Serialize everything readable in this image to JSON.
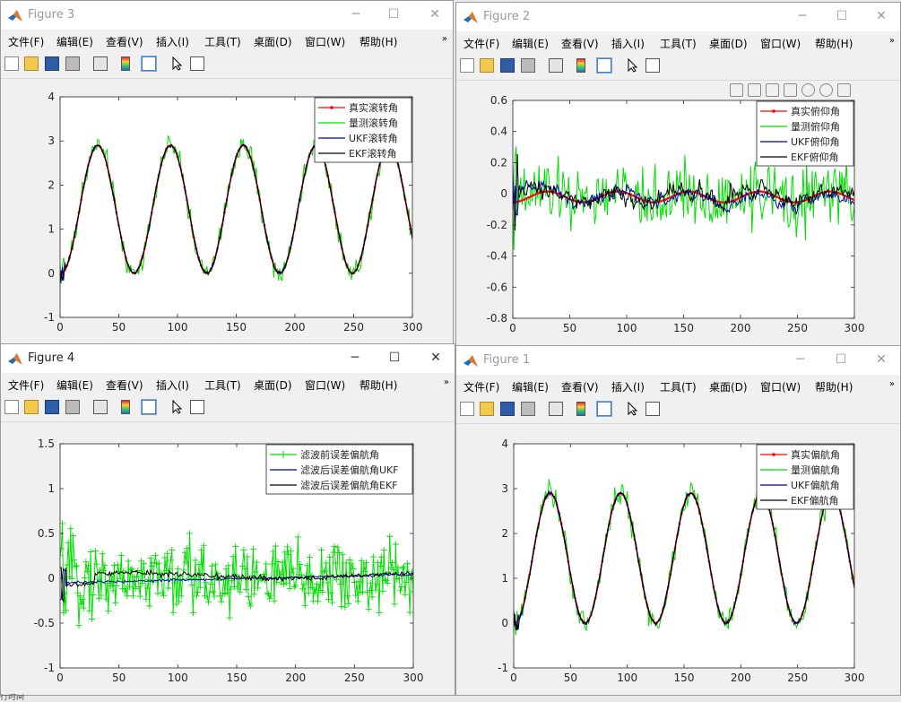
{
  "menus": [
    "文件(F)",
    "编辑(E)",
    "查看(V)",
    "插入(I)",
    "工具(T)",
    "桌面(D)",
    "窗口(W)",
    "帮助(H)"
  ],
  "toolbar_icons": [
    "new-file-icon",
    "open-folder-icon",
    "save-icon",
    "print-icon",
    "link-icon",
    "colorbar-icon",
    "legend-icon",
    "pointer-icon",
    "property-inspector-icon"
  ],
  "axes_toolbar_icons": [
    "brush-icon",
    "data-tips-icon",
    "rotate-icon",
    "pan-hand-icon",
    "zoom-in-icon",
    "zoom-out-icon",
    "home-icon"
  ],
  "taskbar_fragment": "行时间",
  "windows": [
    {
      "id": "fig3",
      "title": "Figure 3",
      "active": false
    },
    {
      "id": "fig2",
      "title": "Figure 2",
      "active": false
    },
    {
      "id": "fig4",
      "title": "Figure 4",
      "active": true
    },
    {
      "id": "fig1",
      "title": "Figure 1",
      "active": false
    }
  ],
  "chart_data": [
    {
      "figure": "Figure 3",
      "type": "line",
      "xlim": [
        0,
        300
      ],
      "ylim": [
        -1,
        4
      ],
      "xticks": [
        0,
        50,
        100,
        150,
        200,
        250,
        300
      ],
      "yticks": [
        -1,
        0,
        1,
        2,
        3,
        4
      ],
      "legend_position": "top-right",
      "model": "sinusoid",
      "period": 62,
      "amplitude": 1.45,
      "offset": 1.45,
      "phase_x_at_peak": 32,
      "series": [
        {
          "name": "真实滚转角",
          "color": "#ff0000",
          "marker": "dot",
          "noise": 0
        },
        {
          "name": "量测滚转角",
          "color": "#00dd00",
          "noise": 0.18
        },
        {
          "name": "UKF滚转角",
          "color": "#0000aa",
          "noise": 0.03
        },
        {
          "name": "EKF滚转角",
          "color": "#000000",
          "noise": 0.03
        }
      ]
    },
    {
      "figure": "Figure 2",
      "type": "line",
      "xlim": [
        0,
        300
      ],
      "ylim": [
        -0.8,
        0.6
      ],
      "xticks": [
        0,
        50,
        100,
        150,
        200,
        250,
        300
      ],
      "yticks": [
        -0.8,
        -0.6,
        -0.4,
        -0.2,
        0,
        0.2,
        0.4,
        0.6
      ],
      "legend_position": "top-right",
      "model": "small-wave",
      "amplitude": 0.035,
      "period": 62,
      "series": [
        {
          "name": "真实俯仰角",
          "color": "#ff0000",
          "marker": "dot",
          "noise": 0
        },
        {
          "name": "量测俯仰角",
          "color": "#00dd00",
          "noise": 0.14
        },
        {
          "name": "UKF俯仰角",
          "color": "#0000aa",
          "noise": 0.02
        },
        {
          "name": "EKF俯仰角",
          "color": "#000000",
          "noise": 0.03
        }
      ]
    },
    {
      "figure": "Figure 4",
      "type": "line",
      "xlim": [
        0,
        300
      ],
      "ylim": [
        -1,
        1.5
      ],
      "xticks": [
        0,
        50,
        100,
        150,
        200,
        250,
        300
      ],
      "yticks": [
        -1,
        -0.5,
        0,
        0.5,
        1,
        1.5
      ],
      "legend_position": "top-right",
      "model": "error",
      "series": [
        {
          "name": "滤波前误差偏航角",
          "color": "#00dd00",
          "marker": "plus",
          "noise": 0.3
        },
        {
          "name": "滤波后误差偏航角UKF",
          "color": "#0000aa",
          "noise": 0.01
        },
        {
          "name": "滤波后误差偏航角EKF",
          "color": "#000000",
          "noise": 0.02
        }
      ]
    },
    {
      "figure": "Figure 1",
      "type": "line",
      "xlim": [
        0,
        300
      ],
      "ylim": [
        -1,
        4
      ],
      "xticks": [
        0,
        50,
        100,
        150,
        200,
        250,
        300
      ],
      "yticks": [
        -1,
        0,
        1,
        2,
        3,
        4
      ],
      "legend_position": "top-right",
      "model": "sinusoid",
      "period": 62,
      "amplitude": 1.45,
      "offset": 1.45,
      "phase_x_at_peak": 32,
      "series": [
        {
          "name": "真实偏航角",
          "color": "#ff0000",
          "marker": "dot",
          "noise": 0
        },
        {
          "name": "量测偏航角",
          "color": "#00dd00",
          "noise": 0.18
        },
        {
          "name": "UKF偏航角",
          "color": "#0000aa",
          "noise": 0.04
        },
        {
          "name": "EKF偏航角",
          "color": "#000000",
          "noise": 0.03
        }
      ]
    }
  ]
}
